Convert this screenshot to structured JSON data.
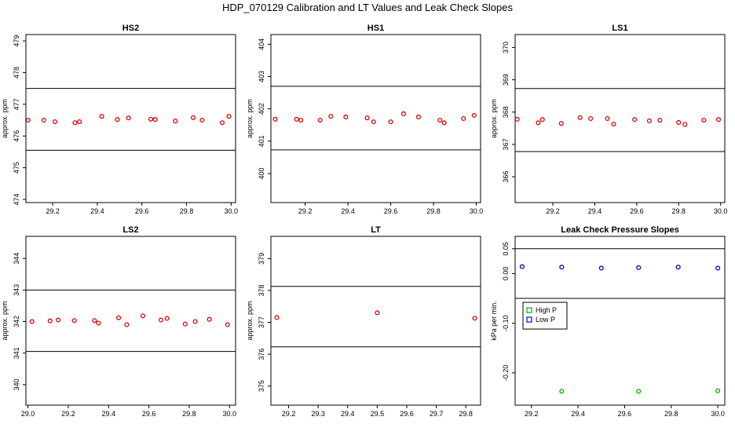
{
  "figure": {
    "title": "HDP_070129  Calibration and LT Values and Leak Check Slopes"
  },
  "colors": {
    "red": "#e00000",
    "green": "#00b000",
    "blue": "#0000d0",
    "line": "#000000"
  },
  "chart_data": [
    {
      "type": "scatter",
      "title": "HS2",
      "ylabel": "approx. ppm",
      "xlim": [
        29.08,
        30.02
      ],
      "ylim": [
        473.9,
        479.2
      ],
      "xticks": [
        "29.2",
        "29.4",
        "29.6",
        "29.8",
        "30.0"
      ],
      "xtick_values": [
        29.2,
        29.4,
        29.6,
        29.8,
        30.0
      ],
      "yticks": [
        "474",
        "475",
        "476",
        "477",
        "478",
        "479"
      ],
      "ytick_values": [
        474,
        475,
        476,
        477,
        478,
        479
      ],
      "hlines": [
        477.5,
        475.55
      ],
      "series": [
        {
          "color": "red",
          "marker": "circle",
          "x": [
            29.09,
            29.16,
            29.21,
            29.3,
            29.32,
            29.42,
            29.49,
            29.54,
            29.64,
            29.66,
            29.75,
            29.83,
            29.87,
            29.96,
            29.99
          ],
          "y": [
            476.5,
            476.5,
            476.45,
            476.42,
            476.45,
            476.62,
            476.52,
            476.57,
            476.53,
            476.52,
            476.47,
            476.58,
            476.5,
            476.42,
            476.62
          ]
        }
      ]
    },
    {
      "type": "scatter",
      "title": "HS1",
      "ylabel": "approx. ppm",
      "xlim": [
        29.04,
        30.02
      ],
      "ylim": [
        399.1,
        404.3
      ],
      "xticks": [
        "29.2",
        "29.4",
        "29.6",
        "29.8",
        "30.0"
      ],
      "xtick_values": [
        29.2,
        29.4,
        29.6,
        29.8,
        30.0
      ],
      "yticks": [
        "400",
        "401",
        "402",
        "403",
        "404"
      ],
      "ytick_values": [
        400,
        401,
        402,
        403,
        404
      ],
      "hlines": [
        402.7,
        400.73
      ],
      "series": [
        {
          "color": "red",
          "marker": "circle",
          "x": [
            29.06,
            29.16,
            29.18,
            29.27,
            29.32,
            29.39,
            29.49,
            29.52,
            29.6,
            29.66,
            29.73,
            29.83,
            29.85,
            29.94,
            29.99
          ],
          "y": [
            401.68,
            401.68,
            401.65,
            401.65,
            401.77,
            401.75,
            401.72,
            401.6,
            401.6,
            401.85,
            401.75,
            401.65,
            401.57,
            401.7,
            401.8
          ]
        }
      ]
    },
    {
      "type": "scatter",
      "title": "LS1",
      "ylabel": "approx. ppm",
      "xlim": [
        29.02,
        30.02
      ],
      "ylim": [
        365.2,
        370.4
      ],
      "xticks": [
        "29.2",
        "29.4",
        "29.6",
        "29.8",
        "30.0"
      ],
      "xtick_values": [
        29.2,
        29.4,
        29.6,
        29.8,
        30.0
      ],
      "yticks": [
        "366",
        "367",
        "368",
        "369",
        "370"
      ],
      "ytick_values": [
        366,
        367,
        368,
        369,
        370
      ],
      "hlines": [
        368.73,
        366.78
      ],
      "series": [
        {
          "color": "red",
          "marker": "circle",
          "x": [
            29.03,
            29.13,
            29.15,
            29.24,
            29.33,
            29.38,
            29.46,
            29.49,
            29.59,
            29.66,
            29.71,
            29.8,
            29.83,
            29.92,
            29.99
          ],
          "y": [
            367.78,
            367.67,
            367.77,
            367.65,
            367.83,
            367.8,
            367.8,
            367.63,
            367.77,
            367.73,
            367.75,
            367.68,
            367.62,
            367.75,
            367.77
          ]
        }
      ]
    },
    {
      "type": "scatter",
      "title": "LS2",
      "ylabel": "approx. ppm",
      "xlim": [
        28.99,
        30.03
      ],
      "ylim": [
        339.35,
        344.7
      ],
      "xticks": [
        "29.0",
        "29.2",
        "29.4",
        "29.6",
        "29.8",
        "30.0"
      ],
      "xtick_values": [
        29.0,
        29.2,
        29.4,
        29.6,
        29.8,
        30.0
      ],
      "yticks": [
        "340",
        "341",
        "342",
        "343",
        "344"
      ],
      "ytick_values": [
        340,
        341,
        342,
        343,
        344
      ],
      "hlines": [
        343.0,
        341.05
      ],
      "series": [
        {
          "color": "red",
          "marker": "circle",
          "x": [
            29.02,
            29.11,
            29.15,
            29.23,
            29.33,
            29.35,
            29.45,
            29.49,
            29.57,
            29.66,
            29.69,
            29.78,
            29.83,
            29.9,
            29.99
          ],
          "y": [
            342.0,
            342.02,
            342.05,
            342.03,
            342.03,
            341.95,
            342.12,
            341.9,
            342.18,
            342.05,
            342.1,
            341.92,
            342.0,
            342.07,
            341.9
          ]
        }
      ]
    },
    {
      "type": "scatter",
      "title": "LT",
      "ylabel": "approx. ppm",
      "xlim": [
        29.14,
        29.85
      ],
      "ylim": [
        374.4,
        379.7
      ],
      "xticks": [
        "29.2",
        "29.3",
        "29.4",
        "29.5",
        "29.6",
        "29.7",
        "29.8"
      ],
      "xtick_values": [
        29.2,
        29.3,
        29.4,
        29.5,
        29.6,
        29.7,
        29.8
      ],
      "yticks": [
        "375",
        "376",
        "377",
        "378",
        "379"
      ],
      "ytick_values": [
        375,
        376,
        377,
        378,
        379
      ],
      "hlines": [
        378.13,
        376.23
      ],
      "series": [
        {
          "color": "red",
          "marker": "circle",
          "x": [
            29.16,
            29.5,
            29.83
          ],
          "y": [
            377.15,
            377.3,
            377.13
          ]
        }
      ]
    },
    {
      "type": "scatter",
      "title": "Leak Check Pressure Slopes",
      "ylabel": "kPa per min.",
      "xlim": [
        29.13,
        30.03
      ],
      "ylim": [
        -0.265,
        0.075
      ],
      "xticks": [
        "29.2",
        "29.4",
        "29.6",
        "29.8",
        "30.0"
      ],
      "xtick_values": [
        29.2,
        29.4,
        29.6,
        29.8,
        30.0
      ],
      "yticks": [
        "-0.20",
        "-0.10",
        "0.00",
        "0.05"
      ],
      "ytick_values": [
        -0.2,
        -0.1,
        0.0,
        0.05
      ],
      "hlines": [
        0.05,
        -0.05
      ],
      "legend": {
        "position": "middle-left",
        "entries": [
          {
            "label": "High P",
            "color": "green"
          },
          {
            "label": "Low P",
            "color": "blue"
          }
        ]
      },
      "series": [
        {
          "name": "High P",
          "color": "green",
          "marker": "circle",
          "x": [
            29.33,
            29.66,
            30.0
          ],
          "y": [
            -0.237,
            -0.237,
            -0.236
          ]
        },
        {
          "name": "Low P",
          "color": "blue",
          "marker": "circle",
          "x": [
            29.16,
            29.33,
            29.5,
            29.66,
            29.83,
            30.0
          ],
          "y": [
            0.014,
            0.013,
            0.011,
            0.012,
            0.013,
            0.011
          ]
        }
      ]
    }
  ]
}
